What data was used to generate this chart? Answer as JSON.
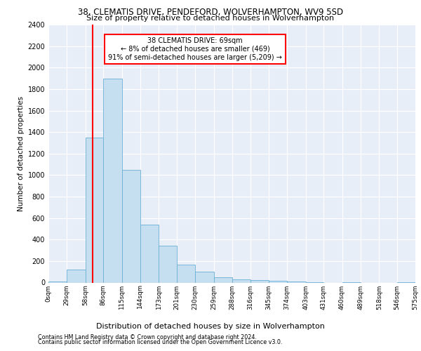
{
  "title_line1": "38, CLEMATIS DRIVE, PENDEFORD, WOLVERHAMPTON, WV9 5SD",
  "title_line2": "Size of property relative to detached houses in Wolverhampton",
  "xlabel": "Distribution of detached houses by size in Wolverhampton",
  "ylabel": "Number of detached properties",
  "footer_line1": "Contains HM Land Registry data © Crown copyright and database right 2024.",
  "footer_line2": "Contains public sector information licensed under the Open Government Licence v3.0.",
  "annotation_line1": "38 CLEMATIS DRIVE: 69sqm",
  "annotation_line2": "← 8% of detached houses are smaller (469)",
  "annotation_line3": "91% of semi-detached houses are larger (5,209) →",
  "property_size": 69,
  "bar_color": "#c5dff0",
  "bar_edge_color": "#6aafd4",
  "vline_color": "red",
  "annotation_box_color": "red",
  "background_color": "#e8eef8",
  "tick_labels": [
    "0sqm",
    "29sqm",
    "58sqm",
    "86sqm",
    "115sqm",
    "144sqm",
    "173sqm",
    "201sqm",
    "230sqm",
    "259sqm",
    "288sqm",
    "316sqm",
    "345sqm",
    "374sqm",
    "403sqm",
    "431sqm",
    "460sqm",
    "489sqm",
    "518sqm",
    "546sqm",
    "575sqm"
  ],
  "bin_edges": [
    0,
    29,
    58,
    86,
    115,
    144,
    173,
    201,
    230,
    259,
    288,
    316,
    345,
    374,
    403,
    431,
    460,
    489,
    518,
    546,
    575
  ],
  "bar_heights": [
    10,
    120,
    1350,
    1900,
    1050,
    540,
    340,
    165,
    100,
    50,
    30,
    20,
    15,
    10,
    5,
    0,
    5,
    0,
    0,
    5
  ],
  "ylim": [
    0,
    2400
  ],
  "yticks": [
    0,
    200,
    400,
    600,
    800,
    1000,
    1200,
    1400,
    1600,
    1800,
    2000,
    2200,
    2400
  ],
  "figsize": [
    6.0,
    5.0
  ],
  "dpi": 100
}
